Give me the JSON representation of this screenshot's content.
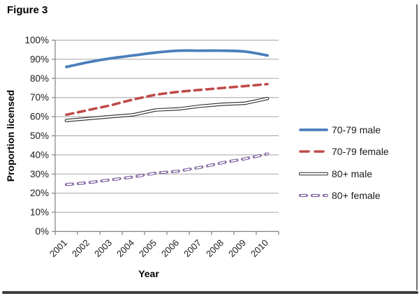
{
  "figure": {
    "title": "Figure 3"
  },
  "chart_data": {
    "type": "line",
    "title": "Figure 3",
    "xlabel": "Year",
    "ylabel": "Proportion licensed",
    "categories": [
      "2001",
      "2002",
      "2003",
      "2004",
      "2005",
      "2006",
      "2007",
      "2008",
      "2009",
      "2010"
    ],
    "y_tick_labels": [
      "0%",
      "10%",
      "20%",
      "30%",
      "40%",
      "50%",
      "60%",
      "70%",
      "80%",
      "90%",
      "100%"
    ],
    "ylim": [
      0,
      100
    ],
    "grid": "horizontal",
    "legend_position": "right",
    "series": [
      {
        "name": "70-79 male",
        "color": "#4A7EBB",
        "style": "solid-smooth",
        "values": [
          86,
          88.5,
          90.5,
          92,
          93.5,
          94.5,
          94.5,
          94.5,
          94,
          92
        ]
      },
      {
        "name": "70-79 female",
        "color": "#BE4B48",
        "style": "dashed",
        "values": [
          61,
          63.5,
          66,
          69,
          71.5,
          73,
          74,
          75,
          76,
          77
        ]
      },
      {
        "name": "80+ male",
        "color": "#262626",
        "style": "outlined",
        "values": [
          58,
          59,
          60,
          61,
          63.5,
          64,
          65.5,
          66.5,
          67,
          69.5
        ]
      },
      {
        "name": "80+ female",
        "color": "#8064A2",
        "style": "outlined-dashed",
        "values": [
          24.5,
          25.5,
          27,
          28.5,
          30.5,
          31.5,
          33.5,
          36,
          38,
          40.5
        ]
      }
    ],
    "colors": {
      "gridline": "#A3A3A3",
      "axis": "#808080",
      "tick_text": "#1A1A1A",
      "axis_title_text": "#000000"
    }
  }
}
